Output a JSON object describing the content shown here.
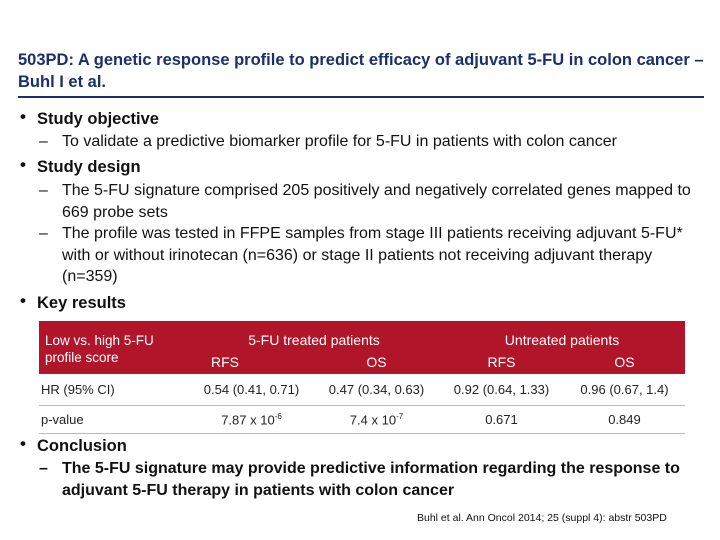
{
  "title": "503PD: A genetic response profile to predict efficacy of adjuvant 5-FU in colon cancer – Buhl I et al.",
  "bullets": {
    "objective": {
      "label": "Study objective",
      "items": [
        "To validate a predictive biomarker profile for 5-FU in patients with colon cancer"
      ]
    },
    "design": {
      "label": "Study design",
      "items": [
        "The 5-FU signature comprised 205 positively and negatively correlated genes mapped to 669 probe sets",
        "The profile was tested in FFPE samples from stage III patients receiving adjuvant 5-FU* with or without irinotecan (n=636) or stage II patients not receiving adjuvant therapy (n=359)"
      ]
    },
    "results": {
      "label": "Key results"
    },
    "conclusion": {
      "label": "Conclusion",
      "items": [
        "The 5-FU signature may provide predictive information regarding the response to adjuvant 5-FU therapy in patients with colon cancer"
      ]
    }
  },
  "glyphs": {
    "bullet": "•",
    "dash": "–"
  },
  "table": {
    "corner": "Low vs. high 5-FU profile score",
    "group_treated": "5-FU treated patients",
    "group_untreated": "Untreated patients",
    "sub": [
      "RFS",
      "OS",
      "RFS",
      "OS"
    ],
    "rows": [
      {
        "label": "HR (95% CI)",
        "cells": [
          "0.54 (0.41, 0.71)",
          "0.47 (0.34, 0.63)",
          "0.92 (0.64, 1.33)",
          "0.96 (0.67, 1.4)"
        ]
      },
      {
        "label": "p-value",
        "cells": [
          {
            "base": "7.87 x 10",
            "exp": "-6"
          },
          {
            "base": "7.4 x 10",
            "exp": "-7"
          },
          {
            "base": "0.671",
            "exp": ""
          },
          {
            "base": "0.849",
            "exp": ""
          }
        ]
      }
    ]
  },
  "citation": "Buhl et al. Ann Oncol 2014; 25 (suppl 4): abstr 503PD",
  "colors": {
    "title": "#1a2f6b",
    "header_bg": "#b0152a"
  }
}
